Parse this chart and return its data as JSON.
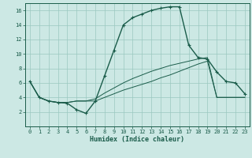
{
  "xlabel": "Humidex (Indice chaleur)",
  "bg_color": "#cce8e4",
  "line_color": "#1a5c4a",
  "grid_color": "#9ac8c0",
  "xlim": [
    -0.5,
    23.5
  ],
  "ylim": [
    0,
    17
  ],
  "xticks": [
    0,
    1,
    2,
    3,
    4,
    5,
    6,
    7,
    8,
    9,
    10,
    11,
    12,
    13,
    14,
    15,
    16,
    17,
    18,
    19,
    20,
    21,
    22,
    23
  ],
  "yticks": [
    2,
    4,
    6,
    8,
    10,
    12,
    14,
    16
  ],
  "series1_x": [
    0,
    1,
    2,
    3,
    4,
    5,
    6,
    7,
    8,
    9,
    10,
    11,
    12,
    13,
    14,
    15,
    16,
    17,
    18,
    19,
    20,
    21,
    22,
    23
  ],
  "series1_y": [
    6.2,
    4.0,
    3.5,
    3.3,
    3.2,
    2.3,
    1.8,
    3.5,
    7.0,
    10.5,
    14.0,
    15.0,
    15.5,
    16.0,
    16.3,
    16.5,
    16.5,
    11.2,
    9.5,
    9.3,
    7.5,
    6.2,
    6.0,
    4.5
  ],
  "series2_x": [
    0,
    1,
    2,
    3,
    4,
    5,
    6,
    7,
    8,
    9,
    10,
    11,
    12,
    13,
    14,
    15,
    16,
    17,
    18,
    19,
    20,
    21,
    22,
    23
  ],
  "series2_y": [
    6.2,
    4.0,
    3.5,
    3.3,
    3.3,
    3.5,
    3.5,
    3.5,
    4.0,
    4.5,
    5.0,
    5.4,
    5.8,
    6.2,
    6.7,
    7.1,
    7.6,
    8.1,
    8.6,
    9.0,
    4.0,
    4.0,
    4.0,
    4.0
  ],
  "series3_x": [
    0,
    1,
    2,
    3,
    4,
    5,
    6,
    7,
    8,
    9,
    10,
    11,
    12,
    13,
    14,
    15,
    16,
    17,
    18,
    19,
    20,
    21,
    22,
    23
  ],
  "series3_y": [
    6.2,
    4.0,
    3.5,
    3.3,
    3.3,
    3.5,
    3.5,
    3.8,
    4.6,
    5.3,
    6.0,
    6.6,
    7.1,
    7.6,
    8.0,
    8.4,
    8.7,
    9.0,
    9.3,
    9.5,
    4.0,
    4.0,
    4.0,
    4.0
  ]
}
